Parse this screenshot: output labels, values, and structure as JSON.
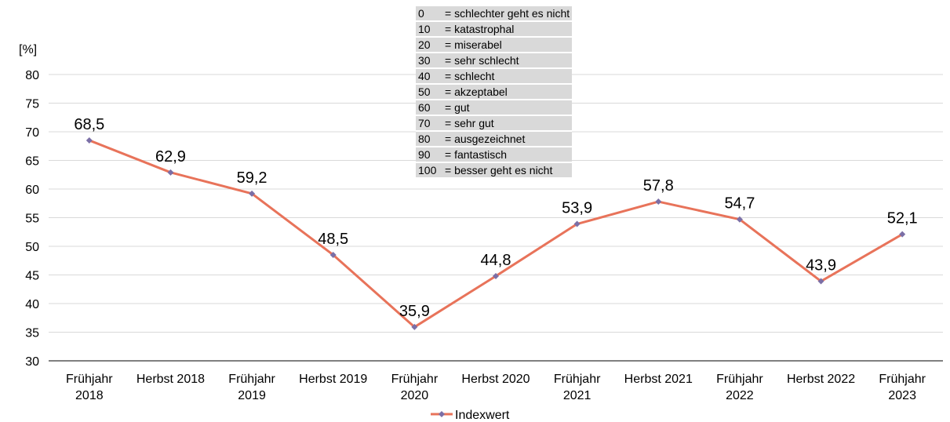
{
  "chart_data": {
    "type": "line",
    "categories": [
      [
        "Frühjahr",
        "2018"
      ],
      [
        "Herbst 2018"
      ],
      [
        "Frühjahr",
        "2019"
      ],
      [
        "Herbst 2019"
      ],
      [
        "Frühjahr",
        "2020"
      ],
      [
        "Herbst 2020"
      ],
      [
        "Frühjahr",
        "2021"
      ],
      [
        "Herbst 2021"
      ],
      [
        "Frühjahr",
        "2022"
      ],
      [
        "Herbst 2022"
      ],
      [
        "Frühjahr",
        "2023"
      ]
    ],
    "series": [
      {
        "name": "Indexwert",
        "values": [
          68.5,
          62.9,
          59.2,
          48.5,
          35.9,
          44.8,
          53.9,
          57.8,
          54.7,
          43.9,
          52.1
        ],
        "labels": [
          "68,5",
          "62,9",
          "59,2",
          "48,5",
          "35,9",
          "44,8",
          "53,9",
          "57,8",
          "54,7",
          "43,9",
          "52,1"
        ],
        "line_color": "#e8735a",
        "marker_color": "#7b6fa6"
      }
    ],
    "ylabel": "[%]",
    "ylim": [
      30,
      80
    ],
    "yticks": [
      30,
      35,
      40,
      45,
      50,
      55,
      60,
      65,
      70,
      75,
      80
    ],
    "grid": true,
    "legend": "bottom",
    "annotation_table": [
      {
        "value": "0",
        "text": "= schlechter  geht es nicht"
      },
      {
        "value": "10",
        "text": "= katastrophal"
      },
      {
        "value": "20",
        "text": "= miserabel"
      },
      {
        "value": "30",
        "text": "= sehr schlecht"
      },
      {
        "value": "40",
        "text": "= schlecht"
      },
      {
        "value": "50",
        "text": "= akzeptabel"
      },
      {
        "value": "60",
        "text": "= gut"
      },
      {
        "value": "70",
        "text": "= sehr gut"
      },
      {
        "value": "80",
        "text": "= ausgezeichnet"
      },
      {
        "value": "90",
        "text": "= fantastisch"
      },
      {
        "value": "100",
        "text": "= besser geht es nicht"
      }
    ]
  }
}
